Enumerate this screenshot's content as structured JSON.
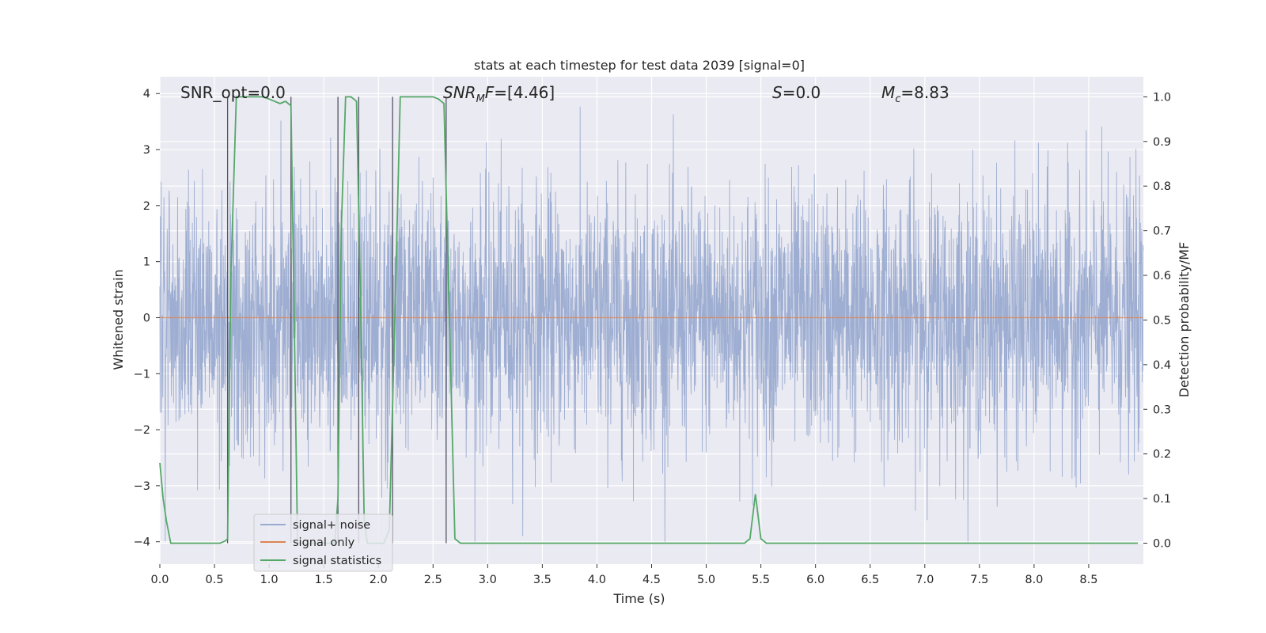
{
  "chart_data": {
    "type": "line",
    "title": "stats at each timestep for test data 2039 [signal=0]",
    "xlabel": "Time (s)",
    "ylabel": "Whitened strain",
    "y2label": "Detection probability/MF",
    "xlim": [
      0,
      9.0
    ],
    "ylim": [
      -4.4,
      4.3
    ],
    "y2lim": [
      -0.047,
      1.045
    ],
    "xticks": [
      "0.0",
      "0.5",
      "1.0",
      "1.5",
      "2.0",
      "2.5",
      "3.0",
      "3.5",
      "4.0",
      "4.5",
      "5.0",
      "5.5",
      "6.0",
      "6.5",
      "7.0",
      "7.5",
      "8.0",
      "8.5"
    ],
    "yticks": [
      "4",
      "3",
      "2",
      "1",
      "0",
      "−1",
      "−2",
      "−3",
      "−4"
    ],
    "y2ticks": [
      "1.0",
      "0.9",
      "0.8",
      "0.7",
      "0.6",
      "0.5",
      "0.4",
      "0.3",
      "0.2",
      "0.1",
      "0.0"
    ],
    "grid": true,
    "legend_position": "lower left",
    "annotations": {
      "snr_opt": "SNR_opt=0.0",
      "snr_mf": "=[4.46]",
      "snr_mf_base": "SNR",
      "snr_mf_sub": "M",
      "snr_mf_tail": "F",
      "s": "=0.0",
      "s_sym": "S",
      "mc": "=8.83",
      "mc_base": "M",
      "mc_sub": "c"
    },
    "series": [
      {
        "name": "signal+ noise",
        "color": "#9aabd0",
        "kind": "noise",
        "amplitude_std": 1.0,
        "range": [
          -4.0,
          4.0
        ]
      },
      {
        "name": "signal only",
        "color": "#dd8452",
        "kind": "flat",
        "y": 0.0
      },
      {
        "name": "signal statistics",
        "color": "#55a868",
        "axis": "right",
        "x": [
          0.0,
          0.03,
          0.06,
          0.1,
          0.5,
          0.55,
          0.6,
          0.62,
          0.65,
          0.7,
          0.8,
          0.95,
          1.0,
          1.05,
          1.1,
          1.15,
          1.2,
          1.23,
          1.26,
          1.3,
          1.6,
          1.63,
          1.66,
          1.7,
          1.75,
          1.8,
          1.84,
          1.87,
          1.9,
          2.0,
          2.05,
          2.1,
          2.15,
          2.2,
          2.3,
          2.45,
          2.5,
          2.55,
          2.6,
          2.65,
          2.7,
          2.75,
          5.35,
          5.4,
          5.45,
          5.5,
          5.55,
          8.95
        ],
        "y": [
          0.18,
          0.1,
          0.05,
          0.0,
          0.0,
          0.0,
          0.005,
          0.01,
          0.6,
          1.0,
          1.0,
          1.0,
          0.995,
          0.99,
          0.985,
          0.99,
          0.98,
          0.5,
          0.0,
          0.0,
          0.0,
          0.1,
          0.7,
          1.0,
          1.0,
          0.99,
          0.5,
          0.05,
          0.0,
          0.0,
          0.0,
          0.03,
          0.5,
          1.0,
          1.0,
          1.0,
          1.0,
          0.995,
          0.985,
          0.5,
          0.01,
          0.0,
          0.0,
          0.01,
          0.11,
          0.01,
          0.0,
          0.0
        ]
      }
    ],
    "vlines": [
      0.62,
      1.2,
      1.63,
      1.82,
      2.13,
      2.62
    ]
  }
}
